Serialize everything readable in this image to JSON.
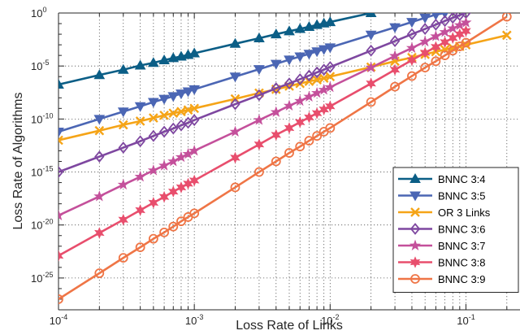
{
  "chart_data": {
    "type": "line",
    "xlabel": "Loss Rate of Links",
    "ylabel": "Loss Rate of Algorithms",
    "xscale": "log",
    "yscale": "log",
    "xlim": [
      0.0001,
      0.25
    ],
    "ylim_exponents": [
      -28,
      0
    ],
    "x_ticks": [
      {
        "base": "10",
        "exp": "-4",
        "value": 0.0001
      },
      {
        "base": "10",
        "exp": "-3",
        "value": 0.001
      },
      {
        "base": "10",
        "exp": "-2",
        "value": 0.01
      },
      {
        "base": "10",
        "exp": "-1",
        "value": 0.1
      }
    ],
    "y_ticks": [
      {
        "base": "10",
        "exp": "0",
        "log10": 0
      },
      {
        "base": "10",
        "exp": "-5",
        "log10": -5
      },
      {
        "base": "10",
        "exp": "-10",
        "log10": -10
      },
      {
        "base": "10",
        "exp": "-15",
        "log10": -15
      },
      {
        "base": "10",
        "exp": "-20",
        "log10": -20
      },
      {
        "base": "10",
        "exp": "-25",
        "log10": -25
      }
    ],
    "grid": true,
    "grid_style": "dotted",
    "legend_position": "bottom-right",
    "x": [
      0.0001,
      0.0002,
      0.0003,
      0.0004,
      0.0005,
      0.0006,
      0.0007,
      0.0008,
      0.0009,
      0.001,
      0.002,
      0.003,
      0.004,
      0.005,
      0.006,
      0.007,
      0.008,
      0.009,
      0.01,
      0.02,
      0.03,
      0.04,
      0.05,
      0.06,
      0.07,
      0.08,
      0.09,
      0.1,
      0.2
    ],
    "series": [
      {
        "name": "BNNC 3:4",
        "color": "#0b5e86",
        "marker": "triangle-up",
        "log10_y": [
          -6.75,
          -5.85,
          -5.35,
          -4.95,
          -4.7,
          -4.45,
          -4.25,
          -4.1,
          -3.95,
          -3.8,
          -2.9,
          -2.38,
          -2.0,
          -1.72,
          -1.5,
          -1.3,
          -1.12,
          -0.98,
          -0.85,
          0.0
        ]
      },
      {
        "name": "BNNC 3:5",
        "color": "#4b66b4",
        "marker": "triangle-down",
        "log10_y": [
          -11.2,
          -10.0,
          -9.3,
          -8.8,
          -8.4,
          -8.1,
          -7.85,
          -7.6,
          -7.4,
          -7.2,
          -6.0,
          -5.3,
          -4.8,
          -4.4,
          -4.1,
          -3.85,
          -3.62,
          -3.42,
          -3.25,
          -2.05,
          -1.35,
          -0.85,
          -0.45,
          -0.15,
          0.0
        ]
      },
      {
        "name": "OR 3 Links",
        "color": "#f5a417",
        "marker": "x",
        "log10_y": [
          -12.0,
          -11.1,
          -10.55,
          -10.2,
          -9.9,
          -9.65,
          -9.45,
          -9.3,
          -9.15,
          -9.0,
          -8.1,
          -7.55,
          -7.2,
          -6.9,
          -6.65,
          -6.45,
          -6.3,
          -6.15,
          -6.0,
          -5.1,
          -4.55,
          -4.2,
          -3.9,
          -3.65,
          -3.45,
          -3.3,
          -3.15,
          -3.0,
          -2.1
        ]
      },
      {
        "name": "BNNC 3:6",
        "color": "#7e47a0",
        "marker": "diamond",
        "log10_y": [
          -15.0,
          -13.55,
          -12.7,
          -12.1,
          -11.6,
          -11.2,
          -10.9,
          -10.6,
          -10.35,
          -10.1,
          -8.6,
          -7.75,
          -7.1,
          -6.65,
          -6.25,
          -5.9,
          -5.6,
          -5.35,
          -5.1,
          -3.55,
          -2.65,
          -2.0,
          -1.5,
          -1.1,
          -0.75,
          -0.45,
          -0.2,
          0.0
        ]
      },
      {
        "name": "BNNC 3:7",
        "color": "#c4509b",
        "marker": "star",
        "log10_y": [
          -19.1,
          -17.3,
          -16.2,
          -15.45,
          -14.85,
          -14.4,
          -14.0,
          -13.6,
          -13.3,
          -13.0,
          -11.2,
          -10.1,
          -9.35,
          -8.75,
          -8.3,
          -7.9,
          -7.55,
          -7.25,
          -7.0,
          -5.15,
          -4.05,
          -3.3,
          -2.7,
          -2.2,
          -1.8,
          -1.45,
          -1.15,
          -0.9
        ]
      },
      {
        "name": "BNNC 3:8",
        "color": "#e84e6d",
        "marker": "hexagram",
        "log10_y": [
          -22.9,
          -20.75,
          -19.5,
          -18.6,
          -17.9,
          -17.35,
          -16.85,
          -16.45,
          -16.1,
          -15.8,
          -13.65,
          -12.4,
          -11.5,
          -10.85,
          -10.3,
          -9.85,
          -9.45,
          -9.1,
          -8.8,
          -6.65,
          -5.35,
          -4.45,
          -3.75,
          -3.2,
          -2.75,
          -2.35,
          -2.0,
          -1.7
        ]
      },
      {
        "name": "BNNC 3:9",
        "color": "#ef7546",
        "marker": "circle",
        "log10_y": [
          -27.0,
          -24.55,
          -23.1,
          -22.1,
          -21.3,
          -20.7,
          -20.15,
          -19.65,
          -19.25,
          -18.9,
          -16.45,
          -15.0,
          -14.0,
          -13.2,
          -12.6,
          -12.05,
          -11.6,
          -11.2,
          -10.85,
          -8.4,
          -6.95,
          -5.95,
          -5.15,
          -4.55,
          -4.0,
          -3.55,
          -3.15,
          -2.8,
          -0.35
        ]
      }
    ]
  }
}
